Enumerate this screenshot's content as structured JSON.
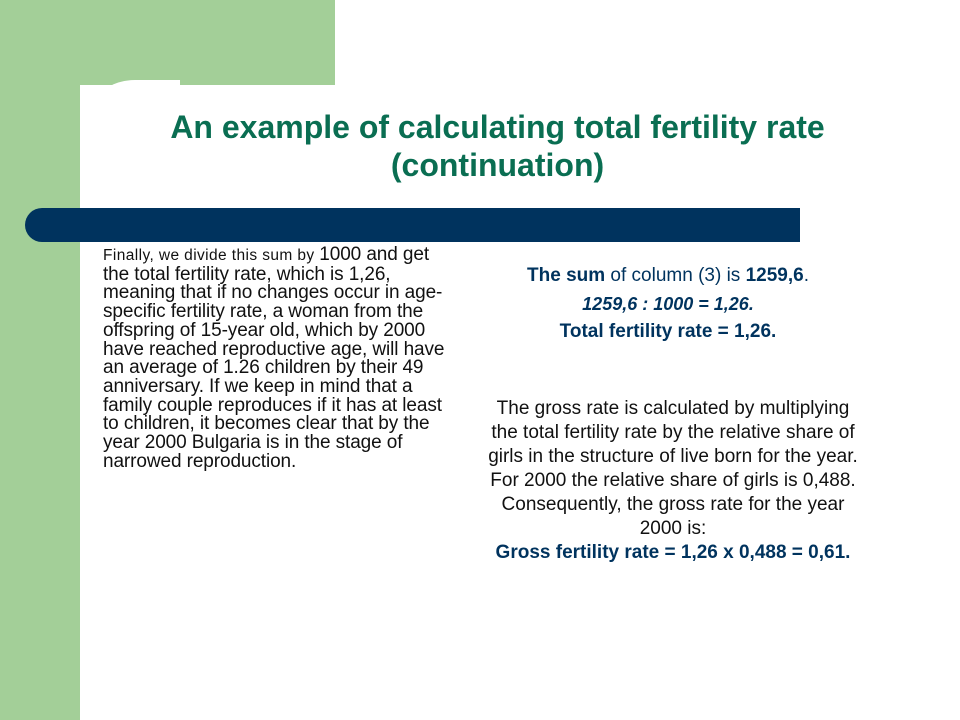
{
  "title": {
    "line1": "An example of calculating total fertility rate",
    "line2": "(continuation)"
  },
  "left": {
    "lead": "Finally, we divide this sum by ",
    "body": "1000 and get the total fertility rate, which is 1,26, meaning that if no changes occur in age-specific fertility rate, a woman from the offspring of 15-year old, which by 2000 have reached reproductive age, will have an average of 1.26 children by their 49 anniversary. If we keep in mind that a family couple reproduces if it has at least to children, it becomes clear that by the year 2000 Bulgaria is in the stage of narrowed reproduction."
  },
  "right": {
    "sum_label": "The sum",
    "sum_mid": " of column (3) is ",
    "sum_value": "1259,6",
    "sum_end": ".",
    "division": "1259,6 : 1000 = 1,26.",
    "tfr": "Total fertility rate = 1,26.",
    "paragraph": "The gross rate is calculated by multiplying the total fertility rate by the relative share of girls in the structure of live born for the year. For 2000 the relative share of girls is 0,488. Consequently, the gross rate for the year 2000 is:",
    "gross": "Gross fertility rate = 1,26 x 0,488 = 0,61."
  },
  "colors": {
    "green_frame": "#a3cf98",
    "navy_bar": "#00335e",
    "title_green": "#0a6e52"
  }
}
